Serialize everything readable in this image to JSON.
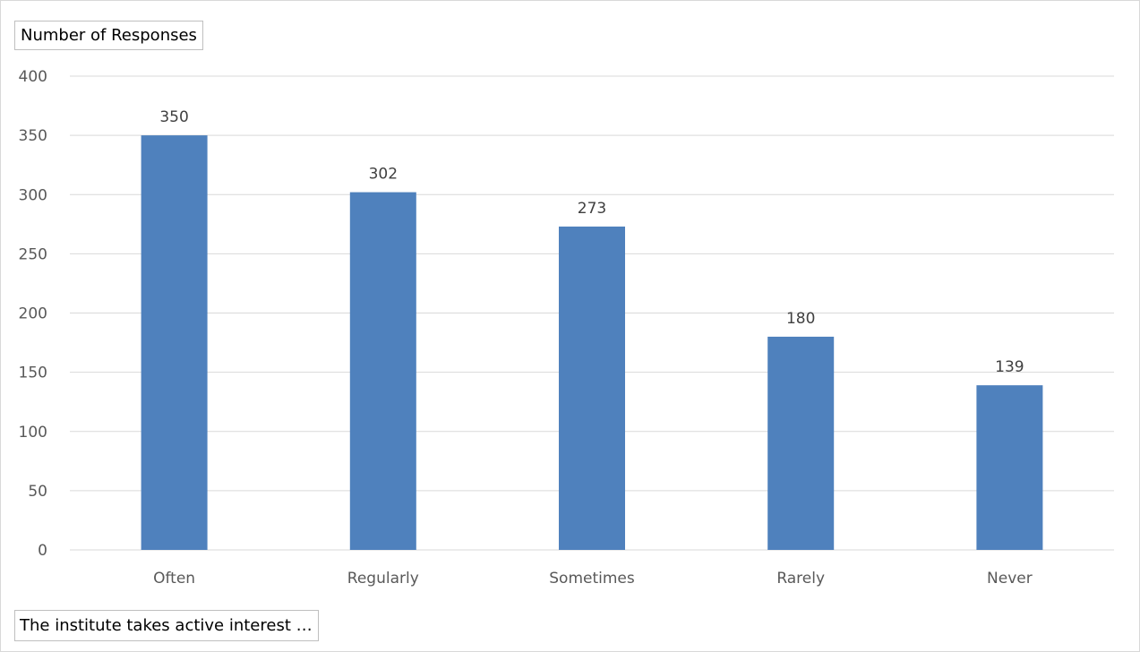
{
  "chart_data": {
    "type": "bar",
    "categories": [
      "Often",
      "Regularly",
      "Sometimes",
      "Rarely",
      "Never"
    ],
    "values": [
      350,
      302,
      273,
      180,
      139
    ],
    "ylabel": "Number of Responses",
    "xlabel": "The institute takes active interest …",
    "ylim": [
      0,
      400
    ],
    "yticks": [
      "0",
      "50",
      "100",
      "150",
      "200",
      "250",
      "300",
      "350",
      "400"
    ],
    "grid": true,
    "bar_color": "#4f81bd",
    "data_labels": [
      "350",
      "302",
      "273",
      "180",
      "139"
    ]
  }
}
